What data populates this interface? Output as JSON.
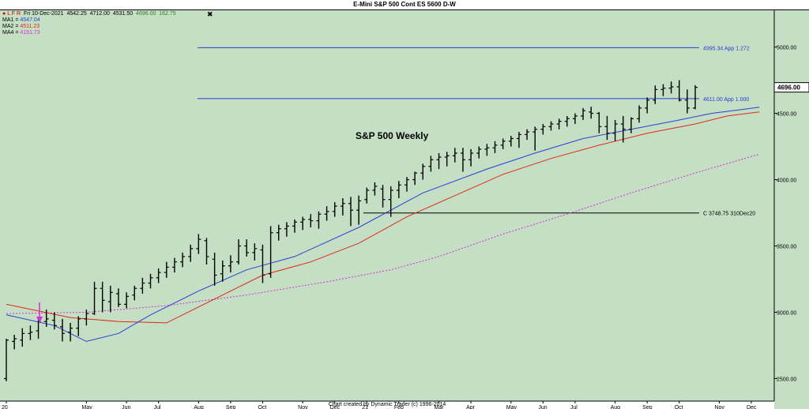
{
  "window_title": "E-Mini S&P 500 Cont ES 5600 D-W",
  "header": {
    "date": "Fri 10-Dec-2021",
    "open": "4542.25",
    "high": "4712.00",
    "low": "4531.50",
    "close": "4696.00",
    "change": "162.75",
    "toolbar_letters": [
      "L",
      "F",
      "R"
    ],
    "close_icon": "x-icon"
  },
  "moving_averages": [
    {
      "label": "MA1",
      "value": "4547.04",
      "color": "#2b3fd6"
    },
    {
      "label": "MA2",
      "value": "4511.23",
      "color": "#e0281c"
    },
    {
      "label": "MA4",
      "value": "4191.73",
      "color": "#d62fd6"
    }
  ],
  "footer_text": "Chart created by Dynamic Trader  (c) 1996-2014",
  "colors": {
    "background": "#c4dfc4",
    "bars": "#000000",
    "ma1": "#2b3fd6",
    "ma2": "#e0281c",
    "ma4": "#d62fd6",
    "price_box": "#ffffff"
  },
  "chart_data": {
    "type": "ohlc",
    "title": "S&P 500 Weekly",
    "xlabel": "",
    "ylabel": "",
    "ylim": [
      2330,
      5200
    ],
    "yticks": [
      "2500.00",
      "3000.00",
      "3500.00",
      "4000.00",
      "4500.00",
      "5000.00"
    ],
    "ytick_values": [
      2500,
      3000,
      3500,
      4000,
      4500,
      5000
    ],
    "xtick_labels": [
      "20",
      "May",
      "Jun",
      "Jul",
      "Aug",
      "Sep",
      "Oct",
      "Nov",
      "Dec",
      "21",
      "Feb",
      "Mar",
      "Apr",
      "May",
      "Jun",
      "Jul",
      "Aug",
      "Sep",
      "Oct",
      "Nov",
      "Dec"
    ],
    "xtick_weeks": [
      0,
      10,
      15,
      19,
      24,
      28,
      32,
      37,
      41,
      45,
      49,
      54,
      58,
      63,
      67,
      71,
      76,
      80,
      84,
      89,
      93
    ],
    "current_price": "4696.00",
    "levels": [
      {
        "label": "4995.34 App 1.272",
        "value": 4995.34,
        "color": "#2b3fd6"
      },
      {
        "label": "4611.00 App 1.000",
        "value": 4611.0,
        "color": "#2b3fd6"
      },
      {
        "label": "C 3748.75 310Dec20",
        "value": 3748.75,
        "color": "#000000"
      }
    ],
    "annotation": "S&P 500 Weekly",
    "bars": [
      [
        2500,
        2800,
        2480,
        2790
      ],
      [
        2780,
        2830,
        2720,
        2800
      ],
      [
        2790,
        2880,
        2740,
        2840
      ],
      [
        2840,
        2900,
        2790,
        2850
      ],
      [
        2860,
        2950,
        2800,
        2930
      ],
      [
        2930,
        3020,
        2890,
        2950
      ],
      [
        2940,
        3000,
        2870,
        2900
      ],
      [
        2890,
        2950,
        2780,
        2840
      ],
      [
        2850,
        2920,
        2780,
        2880
      ],
      [
        2880,
        2970,
        2820,
        2950
      ],
      [
        2950,
        3020,
        2900,
        2990
      ],
      [
        2990,
        3230,
        2980,
        3180
      ],
      [
        3180,
        3230,
        3000,
        3090
      ],
      [
        3080,
        3200,
        3000,
        3150
      ],
      [
        3140,
        3180,
        3040,
        3060
      ],
      [
        3060,
        3150,
        3030,
        3120
      ],
      [
        3130,
        3200,
        3090,
        3180
      ],
      [
        3180,
        3260,
        3140,
        3220
      ],
      [
        3220,
        3290,
        3180,
        3260
      ],
      [
        3260,
        3330,
        3220,
        3300
      ],
      [
        3300,
        3380,
        3260,
        3340
      ],
      [
        3340,
        3410,
        3300,
        3380
      ],
      [
        3380,
        3450,
        3340,
        3420
      ],
      [
        3420,
        3510,
        3380,
        3480
      ],
      [
        3480,
        3590,
        3440,
        3550
      ],
      [
        3540,
        3560,
        3360,
        3420
      ],
      [
        3400,
        3450,
        3200,
        3280
      ],
      [
        3290,
        3390,
        3230,
        3350
      ],
      [
        3350,
        3430,
        3300,
        3380
      ],
      [
        3380,
        3550,
        3360,
        3500
      ],
      [
        3500,
        3550,
        3420,
        3450
      ],
      [
        3450,
        3520,
        3390,
        3480
      ],
      [
        3470,
        3510,
        3220,
        3280
      ],
      [
        3290,
        3650,
        3260,
        3600
      ],
      [
        3600,
        3660,
        3540,
        3630
      ],
      [
        3630,
        3680,
        3570,
        3650
      ],
      [
        3650,
        3700,
        3600,
        3680
      ],
      [
        3680,
        3720,
        3620,
        3700
      ],
      [
        3700,
        3740,
        3640,
        3690
      ],
      [
        3690,
        3760,
        3630,
        3740
      ],
      [
        3740,
        3800,
        3690,
        3760
      ],
      [
        3760,
        3830,
        3720,
        3800
      ],
      [
        3800,
        3860,
        3730,
        3820
      ],
      [
        3820,
        3870,
        3650,
        3770
      ],
      [
        3770,
        3880,
        3660,
        3840
      ],
      [
        3850,
        3940,
        3820,
        3920
      ],
      [
        3920,
        3980,
        3880,
        3950
      ],
      [
        3930,
        3960,
        3790,
        3850
      ],
      [
        3850,
        3950,
        3720,
        3920
      ],
      [
        3920,
        3990,
        3860,
        3960
      ],
      [
        3960,
        4020,
        3910,
        4000
      ],
      [
        4000,
        4060,
        3960,
        4050
      ],
      [
        4050,
        4120,
        4000,
        4100
      ],
      [
        4100,
        4180,
        4060,
        4150
      ],
      [
        4150,
        4200,
        4080,
        4170
      ],
      [
        4170,
        4210,
        4100,
        4180
      ],
      [
        4180,
        4240,
        4130,
        4200
      ],
      [
        4200,
        4240,
        4060,
        4150
      ],
      [
        4150,
        4230,
        4100,
        4200
      ],
      [
        4200,
        4250,
        4160,
        4230
      ],
      [
        4230,
        4270,
        4180,
        4240
      ],
      [
        4240,
        4290,
        4200,
        4260
      ],
      [
        4260,
        4310,
        4230,
        4290
      ],
      [
        4290,
        4330,
        4250,
        4310
      ],
      [
        4310,
        4360,
        4240,
        4340
      ],
      [
        4340,
        4380,
        4300,
        4360
      ],
      [
        4360,
        4400,
        4220,
        4380
      ],
      [
        4380,
        4420,
        4340,
        4400
      ],
      [
        4400,
        4440,
        4370,
        4420
      ],
      [
        4420,
        4460,
        4380,
        4440
      ],
      [
        4440,
        4480,
        4400,
        4460
      ],
      [
        4460,
        4500,
        4420,
        4480
      ],
      [
        4480,
        4540,
        4450,
        4520
      ],
      [
        4510,
        4550,
        4460,
        4500
      ],
      [
        4500,
        4510,
        4350,
        4400
      ],
      [
        4400,
        4480,
        4300,
        4350
      ],
      [
        4350,
        4450,
        4290,
        4420
      ],
      [
        4420,
        4480,
        4280,
        4380
      ],
      [
        4380,
        4470,
        4350,
        4460
      ],
      [
        4460,
        4560,
        4430,
        4540
      ],
      [
        4540,
        4620,
        4500,
        4600
      ],
      [
        4600,
        4710,
        4570,
        4680
      ],
      [
        4680,
        4720,
        4630,
        4690
      ],
      [
        4690,
        4740,
        4650,
        4700
      ],
      [
        4700,
        4750,
        4590,
        4600
      ],
      [
        4600,
        4680,
        4500,
        4540
      ],
      [
        4540,
        4712,
        4531,
        4696
      ]
    ],
    "ma1": [
      [
        0,
        2980
      ],
      [
        6,
        2900
      ],
      [
        10,
        2780
      ],
      [
        14,
        2840
      ],
      [
        18,
        2980
      ],
      [
        24,
        3160
      ],
      [
        30,
        3320
      ],
      [
        36,
        3420
      ],
      [
        44,
        3640
      ],
      [
        52,
        3900
      ],
      [
        60,
        4080
      ],
      [
        66,
        4200
      ],
      [
        72,
        4310
      ],
      [
        78,
        4380
      ],
      [
        84,
        4450
      ],
      [
        88,
        4500
      ],
      [
        92,
        4530
      ],
      [
        94,
        4547
      ]
    ],
    "ma2": [
      [
        0,
        3060
      ],
      [
        8,
        2960
      ],
      [
        14,
        2930
      ],
      [
        20,
        2920
      ],
      [
        26,
        3100
      ],
      [
        32,
        3280
      ],
      [
        38,
        3380
      ],
      [
        44,
        3520
      ],
      [
        50,
        3720
      ],
      [
        56,
        3880
      ],
      [
        62,
        4040
      ],
      [
        68,
        4160
      ],
      [
        74,
        4260
      ],
      [
        80,
        4350
      ],
      [
        86,
        4420
      ],
      [
        90,
        4480
      ],
      [
        94,
        4511
      ]
    ],
    "ma4": [
      [
        0,
        2990
      ],
      [
        10,
        3000
      ],
      [
        20,
        3050
      ],
      [
        30,
        3130
      ],
      [
        40,
        3230
      ],
      [
        48,
        3320
      ],
      [
        54,
        3420
      ],
      [
        62,
        3590
      ],
      [
        70,
        3740
      ],
      [
        78,
        3900
      ],
      [
        86,
        4050
      ],
      [
        94,
        4191.73
      ]
    ]
  }
}
